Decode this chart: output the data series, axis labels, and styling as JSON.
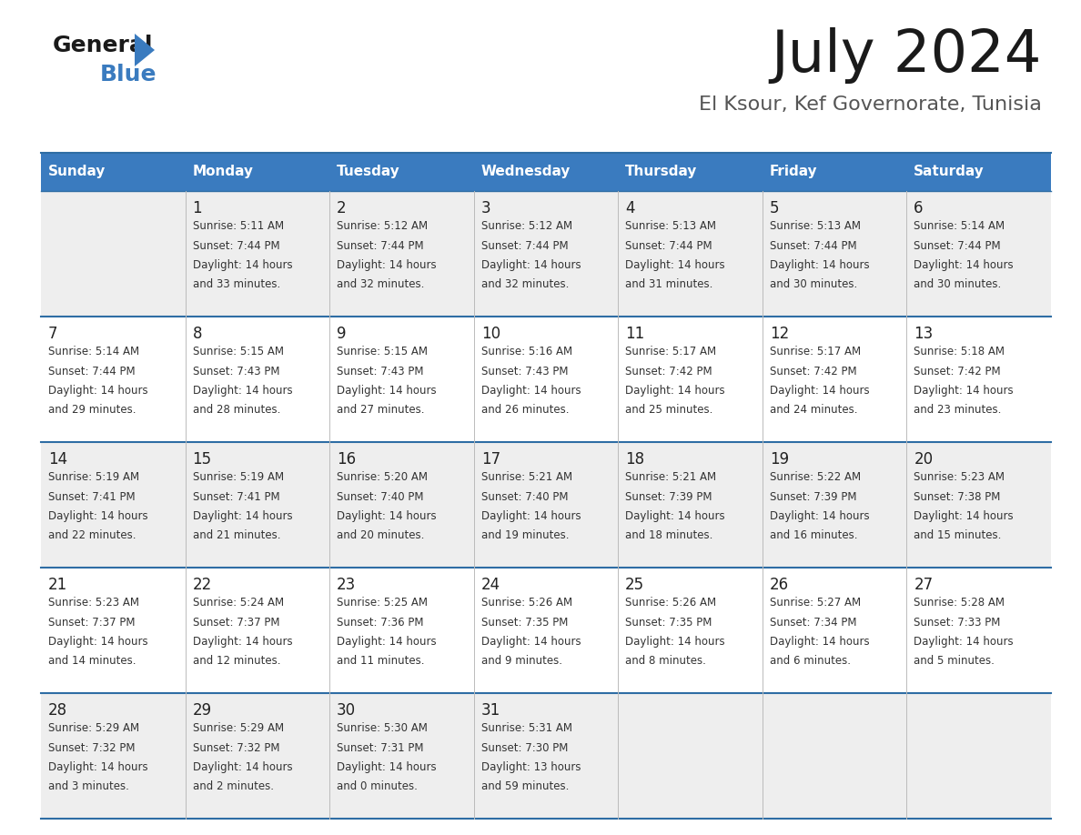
{
  "title": "July 2024",
  "subtitle": "El Ksour, Kef Governorate, Tunisia",
  "header_color": "#3a7bbf",
  "header_text_color": "#ffffff",
  "day_names": [
    "Sunday",
    "Monday",
    "Tuesday",
    "Wednesday",
    "Thursday",
    "Friday",
    "Saturday"
  ],
  "bg_color": "#ffffff",
  "cell_bg_even": "#eeeeee",
  "cell_bg_odd": "#ffffff",
  "row_line_color": "#2e6da4",
  "grid_line_color": "#bbbbbb",
  "day_num_color": "#222222",
  "info_color": "#333333",
  "calendar": [
    [
      null,
      "1\nSunrise: 5:11 AM\nSunset: 7:44 PM\nDaylight: 14 hours\nand 33 minutes.",
      "2\nSunrise: 5:12 AM\nSunset: 7:44 PM\nDaylight: 14 hours\nand 32 minutes.",
      "3\nSunrise: 5:12 AM\nSunset: 7:44 PM\nDaylight: 14 hours\nand 32 minutes.",
      "4\nSunrise: 5:13 AM\nSunset: 7:44 PM\nDaylight: 14 hours\nand 31 minutes.",
      "5\nSunrise: 5:13 AM\nSunset: 7:44 PM\nDaylight: 14 hours\nand 30 minutes.",
      "6\nSunrise: 5:14 AM\nSunset: 7:44 PM\nDaylight: 14 hours\nand 30 minutes."
    ],
    [
      "7\nSunrise: 5:14 AM\nSunset: 7:44 PM\nDaylight: 14 hours\nand 29 minutes.",
      "8\nSunrise: 5:15 AM\nSunset: 7:43 PM\nDaylight: 14 hours\nand 28 minutes.",
      "9\nSunrise: 5:15 AM\nSunset: 7:43 PM\nDaylight: 14 hours\nand 27 minutes.",
      "10\nSunrise: 5:16 AM\nSunset: 7:43 PM\nDaylight: 14 hours\nand 26 minutes.",
      "11\nSunrise: 5:17 AM\nSunset: 7:42 PM\nDaylight: 14 hours\nand 25 minutes.",
      "12\nSunrise: 5:17 AM\nSunset: 7:42 PM\nDaylight: 14 hours\nand 24 minutes.",
      "13\nSunrise: 5:18 AM\nSunset: 7:42 PM\nDaylight: 14 hours\nand 23 minutes."
    ],
    [
      "14\nSunrise: 5:19 AM\nSunset: 7:41 PM\nDaylight: 14 hours\nand 22 minutes.",
      "15\nSunrise: 5:19 AM\nSunset: 7:41 PM\nDaylight: 14 hours\nand 21 minutes.",
      "16\nSunrise: 5:20 AM\nSunset: 7:40 PM\nDaylight: 14 hours\nand 20 minutes.",
      "17\nSunrise: 5:21 AM\nSunset: 7:40 PM\nDaylight: 14 hours\nand 19 minutes.",
      "18\nSunrise: 5:21 AM\nSunset: 7:39 PM\nDaylight: 14 hours\nand 18 minutes.",
      "19\nSunrise: 5:22 AM\nSunset: 7:39 PM\nDaylight: 14 hours\nand 16 minutes.",
      "20\nSunrise: 5:23 AM\nSunset: 7:38 PM\nDaylight: 14 hours\nand 15 minutes."
    ],
    [
      "21\nSunrise: 5:23 AM\nSunset: 7:37 PM\nDaylight: 14 hours\nand 14 minutes.",
      "22\nSunrise: 5:24 AM\nSunset: 7:37 PM\nDaylight: 14 hours\nand 12 minutes.",
      "23\nSunrise: 5:25 AM\nSunset: 7:36 PM\nDaylight: 14 hours\nand 11 minutes.",
      "24\nSunrise: 5:26 AM\nSunset: 7:35 PM\nDaylight: 14 hours\nand 9 minutes.",
      "25\nSunrise: 5:26 AM\nSunset: 7:35 PM\nDaylight: 14 hours\nand 8 minutes.",
      "26\nSunrise: 5:27 AM\nSunset: 7:34 PM\nDaylight: 14 hours\nand 6 minutes.",
      "27\nSunrise: 5:28 AM\nSunset: 7:33 PM\nDaylight: 14 hours\nand 5 minutes."
    ],
    [
      "28\nSunrise: 5:29 AM\nSunset: 7:32 PM\nDaylight: 14 hours\nand 3 minutes.",
      "29\nSunrise: 5:29 AM\nSunset: 7:32 PM\nDaylight: 14 hours\nand 2 minutes.",
      "30\nSunrise: 5:30 AM\nSunset: 7:31 PM\nDaylight: 14 hours\nand 0 minutes.",
      "31\nSunrise: 5:31 AM\nSunset: 7:30 PM\nDaylight: 13 hours\nand 59 minutes.",
      null,
      null,
      null
    ]
  ],
  "figsize": [
    11.88,
    9.18
  ],
  "dpi": 100
}
